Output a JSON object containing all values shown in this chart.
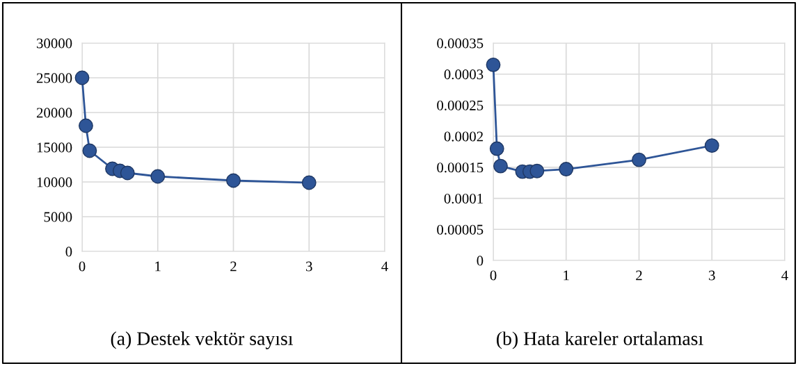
{
  "chart_data": [
    {
      "type": "line",
      "title": "(a) Destek vektör sayısı",
      "x": [
        0,
        0.05,
        0.1,
        0.4,
        0.5,
        0.6,
        1,
        2,
        3
      ],
      "series": [
        {
          "color": "#2e5597",
          "values": [
            25000,
            18100,
            14500,
            11900,
            11600,
            11300,
            10800,
            10200,
            9900
          ]
        }
      ],
      "xlim": [
        0,
        4
      ],
      "xticks": [
        0,
        1,
        2,
        3,
        4
      ],
      "ylim": [
        0,
        30000
      ],
      "yticks": [
        0,
        5000,
        10000,
        15000,
        20000,
        25000,
        30000
      ],
      "grid": true,
      "marker": "circle",
      "line_style": "solid"
    },
    {
      "type": "line",
      "title": "(b) Hata kareler ortalaması",
      "x": [
        0,
        0.05,
        0.1,
        0.4,
        0.5,
        0.6,
        1,
        2,
        3
      ],
      "series": [
        {
          "color": "#2e5597",
          "values": [
            0.000315,
            0.00018,
            0.000152,
            0.000143,
            0.000143,
            0.000144,
            0.000147,
            0.000162,
            0.000185
          ]
        }
      ],
      "xlim": [
        0,
        4
      ],
      "xticks": [
        0,
        1,
        2,
        3,
        4
      ],
      "ylim": [
        0,
        0.00035
      ],
      "yticks": [
        0,
        {
          "value": 5e-05,
          "label": "0.00005"
        },
        0.0001,
        0.00015,
        0.0002,
        0.00025,
        0.0003,
        0.00035
      ],
      "grid": true,
      "marker": "circle",
      "line_style": "solid"
    }
  ]
}
